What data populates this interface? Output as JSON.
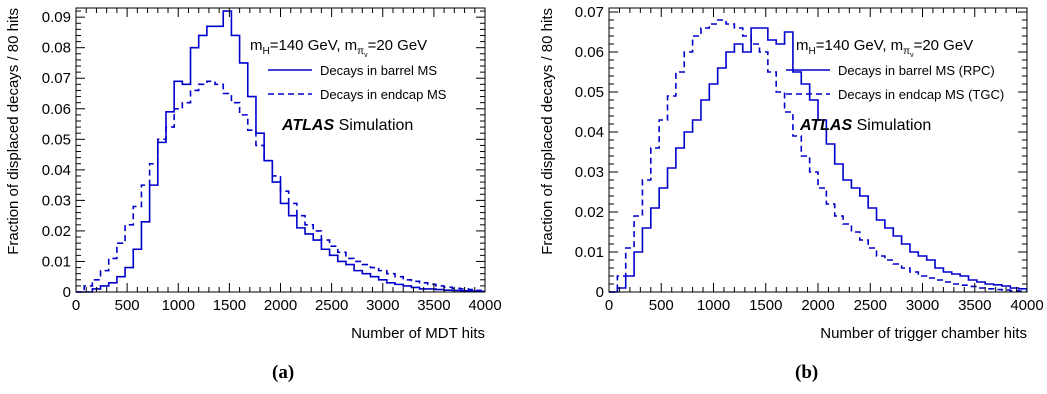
{
  "panels": [
    {
      "label": "(a)"
    },
    {
      "label": "(b)"
    }
  ],
  "chart_data": [
    {
      "type": "line",
      "xlabel": "Number of MDT hits",
      "ylabel": "Fraction of displaced decays / 80 hits",
      "xlim": [
        0,
        4000
      ],
      "ylim": [
        0,
        0.093
      ],
      "xticks": [
        0,
        500,
        1000,
        1500,
        2000,
        2500,
        3000,
        3500,
        4000
      ],
      "yticks": [
        0,
        0.01,
        0.02,
        0.03,
        0.04,
        0.05,
        0.06,
        0.07,
        0.08,
        0.09
      ],
      "ytick_labels": [
        "0",
        "0.01",
        "0.02",
        "0.03",
        "0.04",
        "0.05",
        "0.06",
        "0.07",
        "0.08",
        "0.09"
      ],
      "bin_width": 80,
      "annotation": {
        "mh": "=140 GeV,",
        "mpi": "=20 GeV"
      },
      "atlas": {
        "bold": "ATLAS",
        "text": "Simulation"
      },
      "series": [
        {
          "name": "Decays in barrel MS",
          "style": "solid",
          "color": "#0000cc",
          "values": [
            0,
            0,
            0.001,
            0.002,
            0.003,
            0.005,
            0.008,
            0.014,
            0.023,
            0.035,
            0.049,
            0.059,
            0.069,
            0.068,
            0.08,
            0.084,
            0.087,
            0.087,
            0.092,
            0.084,
            0.075,
            0.064,
            0.052,
            0.043,
            0.036,
            0.029,
            0.025,
            0.021,
            0.019,
            0.017,
            0.014,
            0.012,
            0.01,
            0.009,
            0.007,
            0.006,
            0.005,
            0.004,
            0.003,
            0.0025,
            0.002,
            0.0015,
            0.001,
            0.001,
            0.0008,
            0.0006,
            0.0005,
            0.0004,
            0.0003,
            0.0002
          ]
        },
        {
          "name": "Decays in endcap MS",
          "style": "dashed",
          "color": "#0000cc",
          "values": [
            0,
            0.002,
            0.004,
            0.007,
            0.011,
            0.016,
            0.022,
            0.028,
            0.035,
            0.042,
            0.05,
            0.054,
            0.06,
            0.062,
            0.066,
            0.068,
            0.069,
            0.068,
            0.065,
            0.062,
            0.058,
            0.053,
            0.048,
            0.043,
            0.038,
            0.033,
            0.029,
            0.025,
            0.022,
            0.02,
            0.017,
            0.015,
            0.013,
            0.011,
            0.01,
            0.009,
            0.008,
            0.007,
            0.006,
            0.005,
            0.004,
            0.0035,
            0.003,
            0.0025,
            0.002,
            0.0016,
            0.0012,
            0.001,
            0.0008,
            0.0005
          ]
        }
      ]
    },
    {
      "type": "line",
      "xlabel": "Number of trigger chamber hits",
      "ylabel": "Fraction of displaced decays / 80 hits",
      "xlim": [
        0,
        4000
      ],
      "ylim": [
        0,
        0.071
      ],
      "xticks": [
        0,
        500,
        1000,
        1500,
        2000,
        2500,
        3000,
        3500,
        4000
      ],
      "yticks": [
        0,
        0.01,
        0.02,
        0.03,
        0.04,
        0.05,
        0.06,
        0.07
      ],
      "ytick_labels": [
        "0",
        "0.01",
        "0.02",
        "0.03",
        "0.04",
        "0.05",
        "0.06",
        "0.07"
      ],
      "bin_width": 80,
      "annotation": {
        "mh": "=140 GeV,",
        "mpi": "=20 GeV"
      },
      "atlas": {
        "bold": "ATLAS",
        "text": "Simulation"
      },
      "series": [
        {
          "name": "Decays in barrel MS (RPC)",
          "style": "solid",
          "color": "#0000cc",
          "values": [
            0,
            0.001,
            0.004,
            0.01,
            0.016,
            0.021,
            0.026,
            0.031,
            0.036,
            0.04,
            0.043,
            0.048,
            0.052,
            0.056,
            0.06,
            0.062,
            0.06,
            0.066,
            0.066,
            0.063,
            0.062,
            0.065,
            0.055,
            0.052,
            0.048,
            0.043,
            0.037,
            0.032,
            0.028,
            0.026,
            0.024,
            0.021,
            0.018,
            0.016,
            0.014,
            0.012,
            0.01,
            0.009,
            0.008,
            0.006,
            0.005,
            0.0045,
            0.004,
            0.003,
            0.0025,
            0.002,
            0.0018,
            0.0015,
            0.001,
            0.0008
          ]
        },
        {
          "name": "Decays in endcap MS (TGC)",
          "style": "dashed",
          "color": "#0000cc",
          "values": [
            0,
            0.004,
            0.011,
            0.019,
            0.028,
            0.036,
            0.043,
            0.049,
            0.055,
            0.06,
            0.064,
            0.066,
            0.067,
            0.068,
            0.067,
            0.066,
            0.064,
            0.062,
            0.06,
            0.055,
            0.05,
            0.045,
            0.039,
            0.034,
            0.03,
            0.026,
            0.022,
            0.019,
            0.017,
            0.015,
            0.013,
            0.011,
            0.009,
            0.008,
            0.007,
            0.006,
            0.005,
            0.004,
            0.0035,
            0.003,
            0.0025,
            0.002,
            0.0017,
            0.0014,
            0.001,
            0.0008,
            0.0006,
            0.0005,
            0.0003,
            0.0002
          ]
        }
      ]
    }
  ]
}
